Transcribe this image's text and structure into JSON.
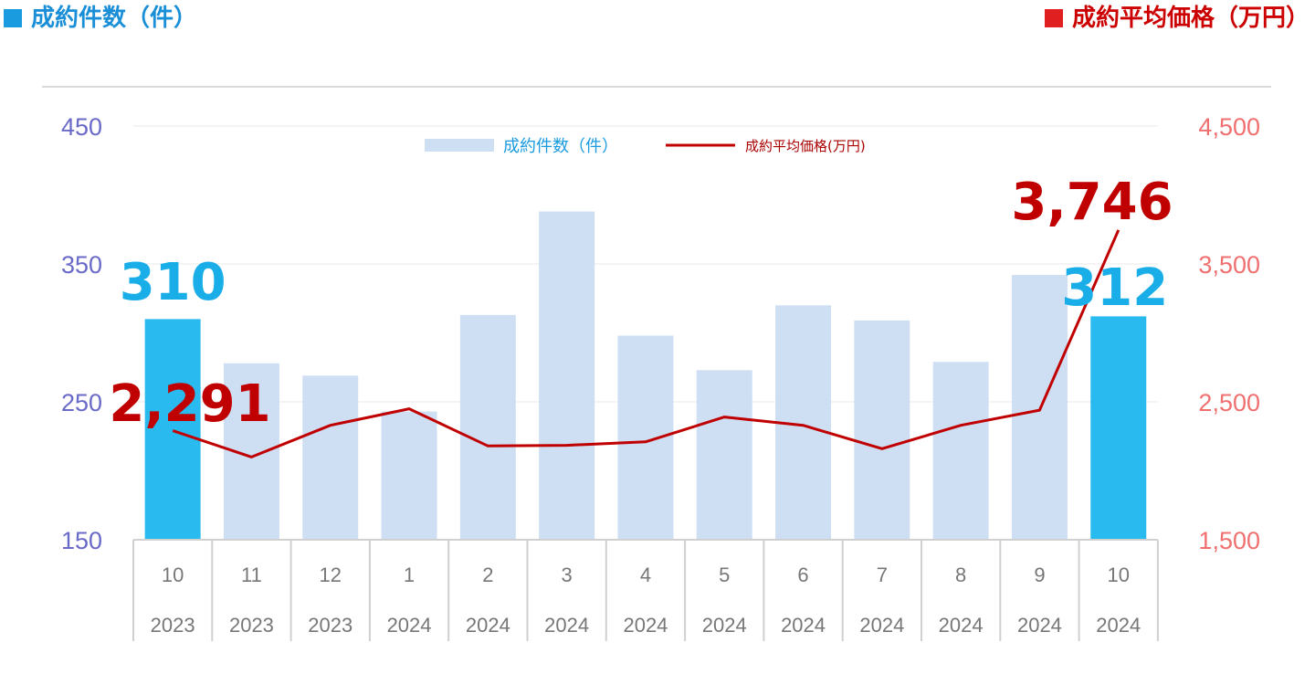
{
  "header": {
    "left_title": "成約件数（件）",
    "right_title": "成約平均価格（万円）",
    "left_color": "#1a9be0",
    "right_color": "#e02020"
  },
  "chart_data": {
    "type": "bar",
    "title": "",
    "categories": [
      [
        "10",
        "2023"
      ],
      [
        "11",
        "2023"
      ],
      [
        "12",
        "2023"
      ],
      [
        "1",
        "2024"
      ],
      [
        "2",
        "2024"
      ],
      [
        "3",
        "2024"
      ],
      [
        "4",
        "2024"
      ],
      [
        "5",
        "2024"
      ],
      [
        "6",
        "2024"
      ],
      [
        "7",
        "2024"
      ],
      [
        "8",
        "2024"
      ],
      [
        "9",
        "2024"
      ],
      [
        "10",
        "2024"
      ]
    ],
    "series": [
      {
        "name": "成約件数（件）",
        "type": "bar",
        "axis": "left",
        "values": [
          310,
          278,
          269,
          243,
          313,
          388,
          298,
          273,
          320,
          309,
          279,
          342,
          312
        ],
        "color": "#cfdff3",
        "highlight_color": "#29bbef",
        "highlight_indices": [
          0,
          12
        ]
      },
      {
        "name": "成約平均価格(万円)",
        "type": "line",
        "axis": "right",
        "values": [
          2291,
          2100,
          2330,
          2450,
          2180,
          2185,
          2210,
          2390,
          2330,
          2160,
          2330,
          2440,
          3746
        ],
        "color": "#c00000"
      }
    ],
    "y_left": {
      "ticks": [
        150,
        250,
        350,
        450
      ],
      "tick_labels": [
        "150",
        "250",
        "350",
        "450"
      ],
      "min": 150,
      "max": 450
    },
    "y_right": {
      "ticks": [
        1500,
        2500,
        3500,
        4500
      ],
      "tick_labels": [
        "1,500",
        "2,500",
        "3,500",
        "4,500"
      ],
      "min": 1500,
      "max": 4500
    },
    "grid": true,
    "legend": "top-center",
    "annotations": [
      {
        "series": 0,
        "index": 0,
        "text": "310"
      },
      {
        "series": 0,
        "index": 12,
        "text": "312"
      },
      {
        "series": 1,
        "index": 0,
        "text": "2,291"
      },
      {
        "series": 1,
        "index": 12,
        "text": "3,746"
      }
    ]
  }
}
